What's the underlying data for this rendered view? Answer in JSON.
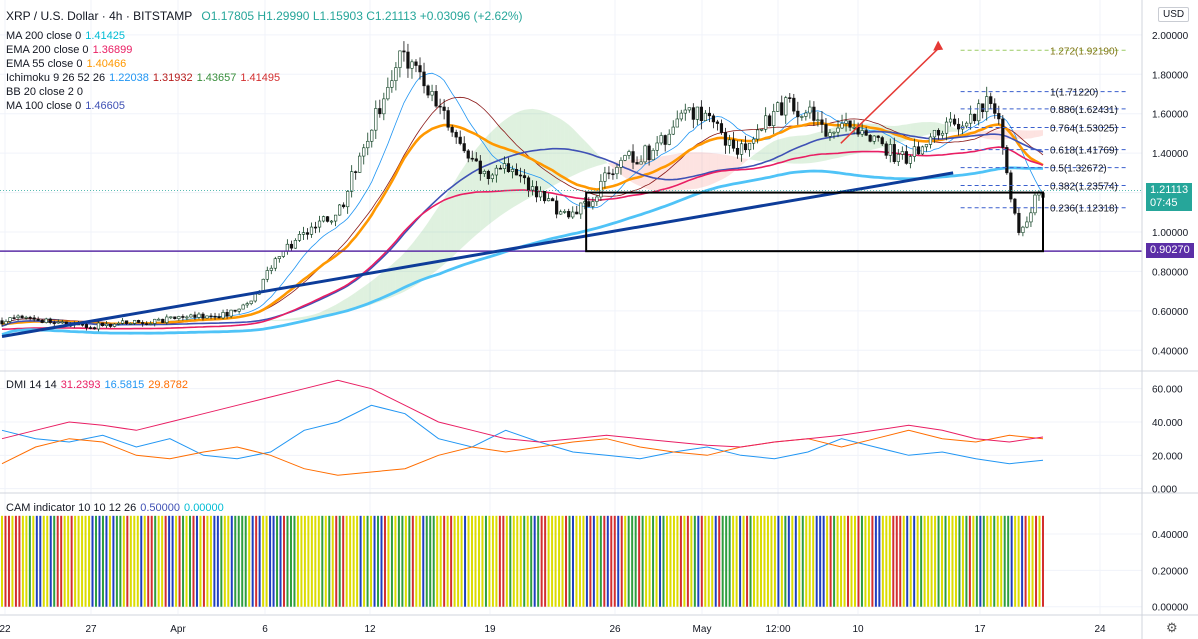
{
  "header": {
    "symbol": "XRP / U.S. Dollar · 4h · BITSTAMP",
    "ohlc": "O1.17805  H1.29990  L1.15903  C1.21113  +0.03096 (+2.62%)",
    "currency": "USD"
  },
  "indicators": [
    {
      "label": "MA 200 close 0",
      "values": [
        "1.41425"
      ],
      "colors": [
        "#00bcd4"
      ]
    },
    {
      "label": "EMA 200 close 0",
      "values": [
        "1.36899"
      ],
      "colors": [
        "#e91e63"
      ]
    },
    {
      "label": "EMA 55 close 0",
      "values": [
        "1.40466"
      ],
      "colors": [
        "#ff9800"
      ]
    },
    {
      "label": "Ichimoku 9 26 52 26",
      "values": [
        "1.22038",
        "1.31932",
        "1.43657",
        "1.41495"
      ],
      "colors": [
        "#2196f3",
        "#b71c1c",
        "#388e3c",
        "#d32f2f"
      ]
    },
    {
      "label": "BB 20 close 2 0",
      "values": [],
      "colors": []
    },
    {
      "label": "MA 100 close 0",
      "values": [
        "1.46605"
      ],
      "colors": [
        "#3f51b5"
      ]
    }
  ],
  "dmi": {
    "label": "DMI 14 14",
    "values": [
      "31.2393",
      "16.5815",
      "29.8782"
    ],
    "colors": [
      "#e91e63",
      "#2196f3",
      "#ff6d00"
    ]
  },
  "cam": {
    "label": "CAM indicator 10 10 12 26",
    "values": [
      "0.50000",
      "0.00000"
    ],
    "colors": [
      "#3f51b5",
      "#00bcd4"
    ]
  },
  "price_labels": {
    "current": "1.21113",
    "countdown": "07:45",
    "support": "0.90270"
  },
  "colors": {
    "price_box": "#26a69a",
    "support_line": "#5b2ea6",
    "trendline": "#0d3c99",
    "arrow": "#e53935",
    "fib": "#3a5fcd"
  },
  "chart_data": {
    "type": "candlestick",
    "y_axis_price": {
      "min": 0.3,
      "max": 2.05,
      "ticks": [
        "2.00000",
        "1.80000",
        "1.60000",
        "1.40000",
        "1.20000",
        "1.00000",
        "0.80000",
        "0.60000",
        "0.40000"
      ]
    },
    "y_axis_dmi": {
      "min": -2,
      "max": 70,
      "ticks": [
        "60.000",
        "40.000",
        "20.000",
        "0.000"
      ]
    },
    "y_axis_cam": {
      "min": -0.04,
      "max": 0.62,
      "ticks": [
        "0.40000",
        "0.20000",
        "0.00000"
      ]
    },
    "x_ticks": [
      "22",
      "27",
      "Apr",
      "6",
      "12",
      "19",
      "26",
      "May",
      "12:00",
      "10",
      "17",
      "24"
    ],
    "price_path": [
      [
        0,
        0.55
      ],
      [
        4,
        0.57
      ],
      [
        8,
        0.53
      ],
      [
        12,
        0.52
      ],
      [
        16,
        0.54
      ],
      [
        20,
        0.55
      ],
      [
        25,
        0.57
      ],
      [
        30,
        0.58
      ],
      [
        33,
        0.63
      ],
      [
        35,
        0.75
      ],
      [
        37,
        0.9
      ],
      [
        39,
        0.95
      ],
      [
        41,
        1.0
      ],
      [
        43,
        1.05
      ],
      [
        45,
        1.1
      ],
      [
        47,
        1.3
      ],
      [
        49,
        1.5
      ],
      [
        51,
        1.7
      ],
      [
        53,
        1.9
      ],
      [
        55,
        1.85
      ],
      [
        57,
        1.7
      ],
      [
        59,
        1.6
      ],
      [
        61,
        1.45
      ],
      [
        63,
        1.35
      ],
      [
        65,
        1.3
      ],
      [
        67,
        1.35
      ],
      [
        69,
        1.3
      ],
      [
        71,
        1.2
      ],
      [
        73,
        1.15
      ],
      [
        75,
        1.1
      ],
      [
        77,
        1.12
      ],
      [
        79,
        1.15
      ],
      [
        81,
        1.3
      ],
      [
        83,
        1.4
      ],
      [
        85,
        1.38
      ],
      [
        87,
        1.42
      ],
      [
        89,
        1.5
      ],
      [
        91,
        1.58
      ],
      [
        93,
        1.62
      ],
      [
        95,
        1.55
      ],
      [
        97,
        1.45
      ],
      [
        99,
        1.4
      ],
      [
        101,
        1.5
      ],
      [
        103,
        1.6
      ],
      [
        105,
        1.65
      ],
      [
        107,
        1.62
      ],
      [
        109,
        1.55
      ],
      [
        111,
        1.5
      ],
      [
        113,
        1.55
      ],
      [
        115,
        1.48
      ],
      [
        117,
        1.45
      ],
      [
        119,
        1.4
      ],
      [
        121,
        1.38
      ],
      [
        123,
        1.45
      ],
      [
        125,
        1.5
      ],
      [
        127,
        1.55
      ],
      [
        129,
        1.6
      ],
      [
        131,
        1.62
      ],
      [
        132,
        1.7
      ],
      [
        133,
        1.55
      ],
      [
        134,
        1.35
      ],
      [
        135,
        1.1
      ],
      [
        136,
        0.98
      ],
      [
        137,
        1.05
      ],
      [
        138,
        1.2
      ],
      [
        139,
        1.21
      ]
    ],
    "horizontal_support": 0.9027,
    "current_price": 1.21113,
    "fibonacci": [
      {
        "label": "1.272(1.92190)",
        "value": 1.9219
      },
      {
        "label": "1(1.71220)",
        "value": 1.7122
      },
      {
        "label": "0.886(1.62431)",
        "value": 1.62431
      },
      {
        "label": "0.764(1.53025)",
        "value": 1.53025
      },
      {
        "label": "0.618(1.41769)",
        "value": 1.41769
      },
      {
        "label": "0.5(1.32672)",
        "value": 1.32672
      },
      {
        "label": "0.382(1.23574)",
        "value": 1.23574
      },
      {
        "label": "0.236(1.12318)",
        "value": 1.12318
      }
    ],
    "dmi_series": {
      "plus_di": [
        35,
        30,
        28,
        32,
        25,
        30,
        20,
        18,
        22,
        35,
        40,
        50,
        45,
        30,
        25,
        35,
        28,
        22,
        20,
        18,
        22,
        25,
        20,
        18,
        22,
        30,
        25,
        20,
        22,
        18,
        15,
        17
      ],
      "minus_di": [
        15,
        25,
        30,
        28,
        20,
        18,
        22,
        25,
        20,
        12,
        8,
        10,
        12,
        20,
        25,
        22,
        25,
        28,
        30,
        25,
        22,
        20,
        25,
        28,
        30,
        25,
        30,
        35,
        30,
        28,
        32,
        30
      ],
      "adx": [
        30,
        35,
        40,
        38,
        35,
        40,
        45,
        50,
        55,
        60,
        65,
        60,
        50,
        40,
        35,
        30,
        28,
        30,
        32,
        30,
        28,
        26,
        25,
        28,
        30,
        32,
        35,
        38,
        35,
        30,
        28,
        31
      ]
    },
    "cam_bar_value": 0.5,
    "cam_colors": [
      "#dcdc00",
      "#2e9e3e",
      "#1f3fbf",
      "#d32f2f"
    ]
  }
}
